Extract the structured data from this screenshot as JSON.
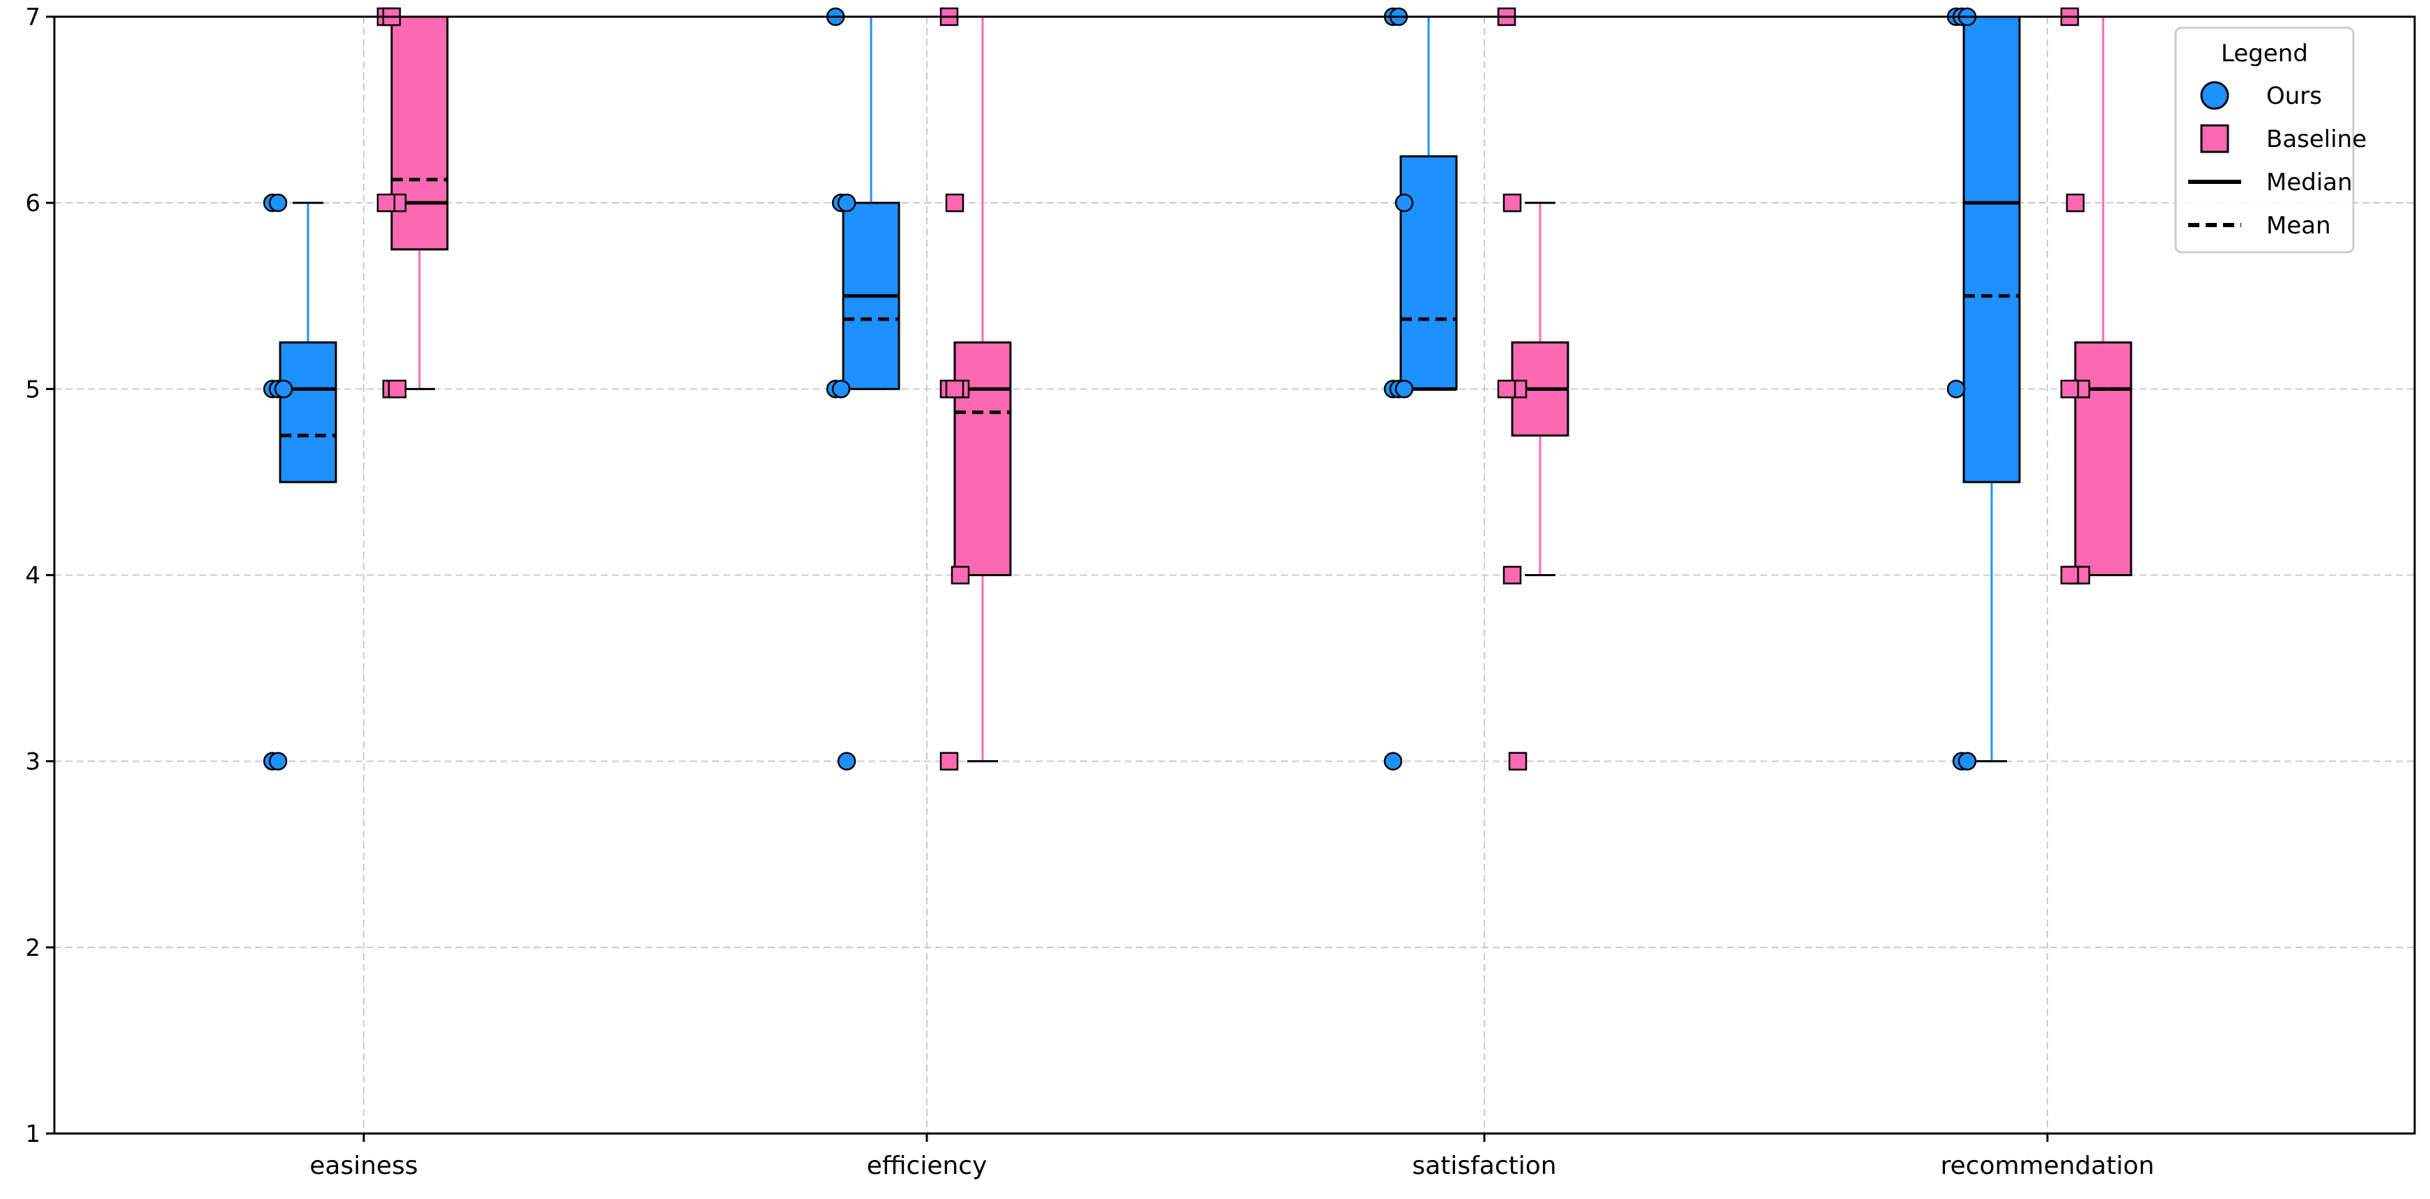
{
  "chart_data": {
    "type": "box",
    "title": "",
    "xlabel": "",
    "ylabel": "",
    "ylim": [
      1,
      7
    ],
    "yticks": [
      1,
      2,
      3,
      4,
      5,
      6,
      7
    ],
    "categories": [
      "easiness",
      "efficiency",
      "satisfaction",
      "recommendation"
    ],
    "grid": true,
    "legend": {
      "title": "Legend",
      "placement": "top-right",
      "entries": [
        {
          "label": "Ours",
          "kind": "circle",
          "color": "#1E90FF"
        },
        {
          "label": "Baseline",
          "kind": "square",
          "color": "#FF69B4"
        },
        {
          "label": "Median",
          "kind": "solid-line",
          "color": "#000000"
        },
        {
          "label": "Mean",
          "kind": "dashed-line",
          "color": "#000000"
        }
      ]
    },
    "series": [
      {
        "name": "Ours",
        "color": "#1E90FF",
        "marker": "circle",
        "boxes": [
          {
            "category": "easiness",
            "whisker_low": 4.5,
            "q1": 4.5,
            "median": 5.0,
            "mean": 4.75,
            "q3": 5.25,
            "whisker_high": 6.0
          },
          {
            "category": "efficiency",
            "whisker_low": 5.0,
            "q1": 5.0,
            "median": 5.5,
            "mean": 5.375,
            "q3": 6.0,
            "whisker_high": 7.0
          },
          {
            "category": "satisfaction",
            "whisker_low": 5.0,
            "q1": 5.0,
            "median": 5.0,
            "mean": 5.375,
            "q3": 6.25,
            "whisker_high": 7.0
          },
          {
            "category": "recommendation",
            "whisker_low": 3.0,
            "q1": 4.5,
            "median": 6.0,
            "mean": 5.5,
            "q3": 7.0,
            "whisker_high": 7.0
          }
        ],
        "points": [
          [
            6,
            6,
            5,
            5,
            5,
            5,
            3,
            3
          ],
          [
            7,
            6,
            6,
            5,
            5,
            3
          ],
          [
            7,
            7,
            6,
            5,
            5,
            5,
            3
          ],
          [
            7,
            7,
            7,
            5,
            3,
            3
          ]
        ]
      },
      {
        "name": "Baseline",
        "color": "#FF69B4",
        "marker": "square",
        "boxes": [
          {
            "category": "easiness",
            "whisker_low": 5.0,
            "q1": 5.75,
            "median": 6.0,
            "mean": 6.125,
            "q3": 7.0,
            "whisker_high": 7.0
          },
          {
            "category": "efficiency",
            "whisker_low": 3.0,
            "q1": 4.0,
            "median": 5.0,
            "mean": 4.875,
            "q3": 5.25,
            "whisker_high": 7.0
          },
          {
            "category": "satisfaction",
            "whisker_low": 4.0,
            "q1": 4.75,
            "median": 5.0,
            "mean": 5.0,
            "q3": 5.25,
            "whisker_high": 6.0
          },
          {
            "category": "recommendation",
            "whisker_low": 4.0,
            "q1": 4.0,
            "median": 5.0,
            "mean": 5.0,
            "q3": 5.25,
            "whisker_high": 7.0
          }
        ],
        "points": [
          [
            7,
            7,
            6,
            6,
            5,
            5
          ],
          [
            7,
            6,
            5,
            5,
            5,
            4,
            3
          ],
          [
            7,
            6,
            5,
            5,
            4,
            3
          ],
          [
            7,
            6,
            5,
            5,
            4,
            4,
            4
          ]
        ]
      }
    ]
  }
}
